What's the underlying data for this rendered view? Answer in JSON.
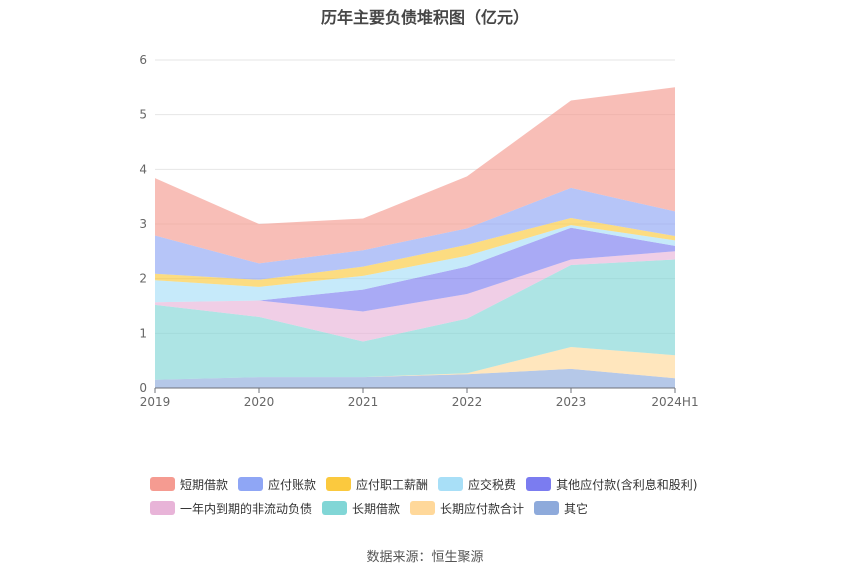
{
  "chart_data": {
    "type": "area",
    "stacked": true,
    "title": "历年主要负债堆积图（亿元）",
    "categories": [
      "2019",
      "2020",
      "2021",
      "2022",
      "2023",
      "2024H1"
    ],
    "yticks": [
      "0",
      "1",
      "2",
      "3",
      "4",
      "5",
      "6"
    ],
    "ylim": [
      0,
      6
    ],
    "xlabel": "",
    "ylabel": "",
    "grid": true,
    "legend_position": "bottom",
    "series": [
      {
        "name": "其它",
        "color": "#8eaadb",
        "values": [
          0.15,
          0.2,
          0.2,
          0.25,
          0.35,
          0.18
        ]
      },
      {
        "name": "长期应付款合计",
        "color": "#ffd89a",
        "values": [
          0.0,
          0.0,
          0.0,
          0.02,
          0.4,
          0.42
        ]
      },
      {
        "name": "长期借款",
        "color": "#81d6d6",
        "values": [
          1.37,
          1.1,
          0.65,
          1.0,
          1.5,
          1.75
        ]
      },
      {
        "name": "一年内到期的非流动负债",
        "color": "#e8b4d8",
        "values": [
          0.05,
          0.3,
          0.55,
          0.45,
          0.1,
          0.15
        ]
      },
      {
        "name": "其他应付款(含利息和股利)",
        "color": "#7b7cf0",
        "values": [
          0.0,
          0.0,
          0.4,
          0.5,
          0.58,
          0.1
        ]
      },
      {
        "name": "应交税费",
        "color": "#a8dff7",
        "values": [
          0.4,
          0.25,
          0.25,
          0.2,
          0.05,
          0.1
        ]
      },
      {
        "name": "应付职工薪酬",
        "color": "#fbc93e",
        "values": [
          0.12,
          0.13,
          0.17,
          0.2,
          0.13,
          0.08
        ]
      },
      {
        "name": "应付账款",
        "color": "#8fa6f5",
        "values": [
          0.7,
          0.3,
          0.3,
          0.3,
          0.55,
          0.45
        ]
      },
      {
        "name": "短期借款",
        "color": "#f59b91",
        "values": [
          1.05,
          0.72,
          0.58,
          0.95,
          1.6,
          2.27
        ]
      }
    ]
  },
  "legend_order": [
    "短期借款",
    "应付账款",
    "应付职工薪酬",
    "应交税费",
    "其他应付款(含利息和股利)",
    "一年内到期的非流动负债",
    "长期借款",
    "长期应付款合计",
    "其它"
  ],
  "source": "数据来源：恒生聚源"
}
